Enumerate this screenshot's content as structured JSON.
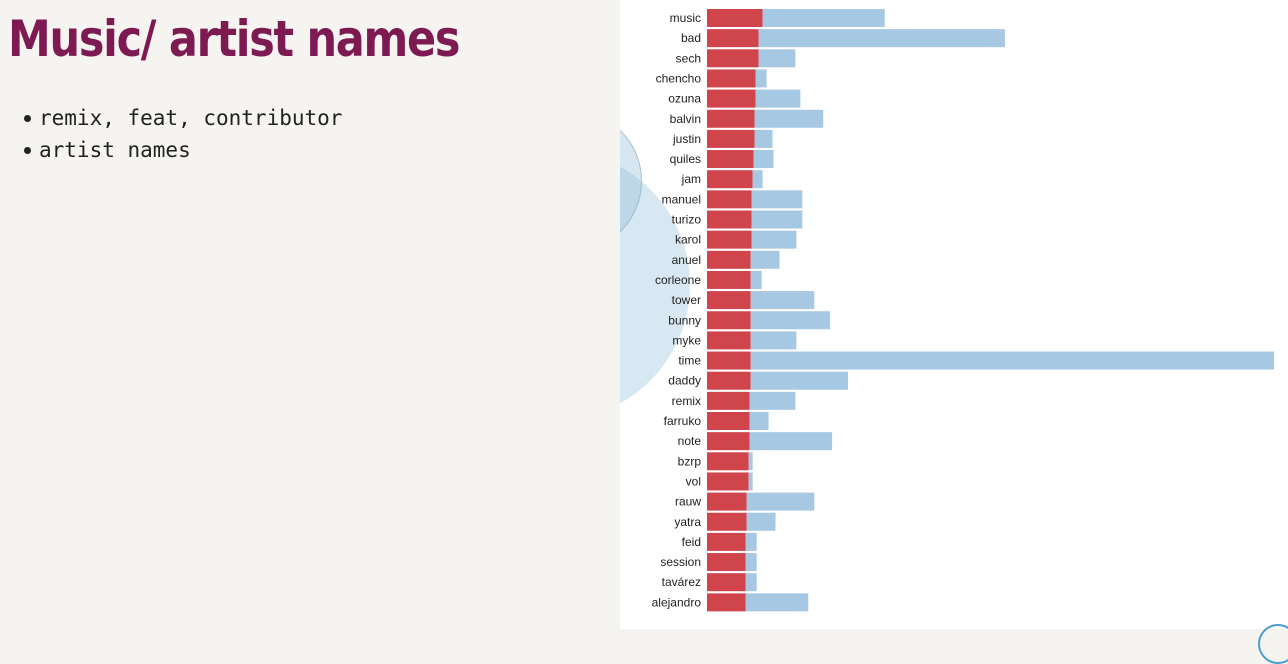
{
  "slide": {
    "title": "Music/ artist names",
    "bullets": [
      "remix, feat, contributor",
      "artist names"
    ]
  },
  "colors": {
    "title": "#7d1a52",
    "primary_bar": "#d0444c",
    "secondary_bar": "#a6c8e2",
    "panel_bg": "#f6f4f0"
  },
  "chart_data": {
    "type": "bar",
    "orientation": "horizontal",
    "stacked": true,
    "categories": [
      "music",
      "bad",
      "sech",
      "chencho",
      "ozuna",
      "balvin",
      "justin",
      "quiles",
      "jam",
      "manuel",
      "turizo",
      "karol",
      "anuel",
      "corleone",
      "tower",
      "bunny",
      "myke",
      "time",
      "daddy",
      "remix",
      "farruko",
      "note",
      "bzrp",
      "vol",
      "rauw",
      "yatra",
      "feid",
      "session",
      "tavárez",
      "alejandro"
    ],
    "series": [
      {
        "color": "#d0444c",
        "values": [
          56,
          52,
          52,
          49,
          49,
          48,
          48,
          47,
          46,
          45,
          45,
          45,
          44,
          44,
          44,
          44,
          44,
          44,
          44,
          43,
          43,
          43,
          42,
          42,
          40,
          40,
          39,
          39,
          39,
          39
        ]
      },
      {
        "color": "#a6c8e2",
        "values": [
          123,
          248,
          37,
          11,
          45,
          69,
          18,
          20,
          10,
          51,
          51,
          45,
          29,
          11,
          64,
          80,
          46,
          527,
          98,
          46,
          19,
          83,
          4,
          4,
          68,
          29,
          11,
          11,
          11,
          63
        ]
      }
    ],
    "xlim": [
      0,
      572
    ],
    "axis_ticks": false,
    "grid": false,
    "legend": "none"
  }
}
